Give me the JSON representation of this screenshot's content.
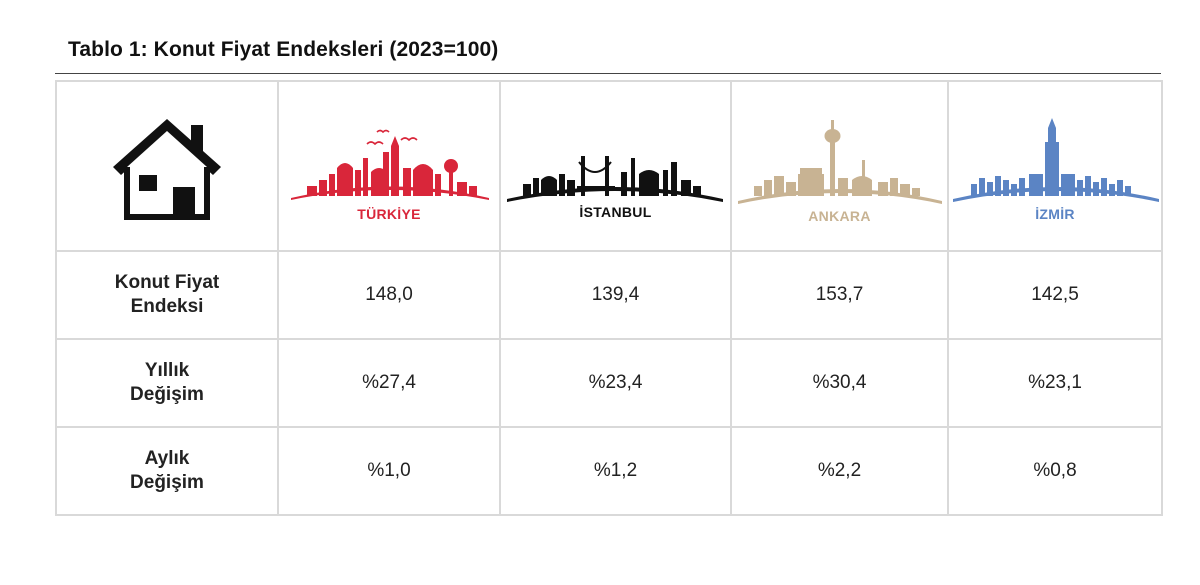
{
  "title": "Tablo 1: Konut Fiyat Endeksleri (2023=100)",
  "cities": [
    {
      "name": "TÜRKİYE",
      "color": "#d9263a",
      "icon": "turkiye-skyline-icon"
    },
    {
      "name": "İSTANBUL",
      "color": "#111111",
      "icon": "istanbul-skyline-icon"
    },
    {
      "name": "ANKARA",
      "color": "#c8b393",
      "icon": "ankara-skyline-icon"
    },
    {
      "name": "İZMİR",
      "color": "#5b84c4",
      "icon": "izmir-skyline-icon"
    }
  ],
  "house_icon": "house-icon",
  "rows": [
    {
      "label": [
        "Konut Fiyat",
        "Endeksi"
      ],
      "values": [
        "148,0",
        "139,4",
        "153,7",
        "142,5"
      ]
    },
    {
      "label": [
        "Yıllık",
        "Değişim"
      ],
      "values": [
        "%27,4",
        "%23,4",
        "%30,4",
        "%23,1"
      ]
    },
    {
      "label": [
        "Aylık",
        "Değişim"
      ],
      "values": [
        "%1,0",
        "%1,2",
        "%2,2",
        "%0,8"
      ]
    }
  ]
}
